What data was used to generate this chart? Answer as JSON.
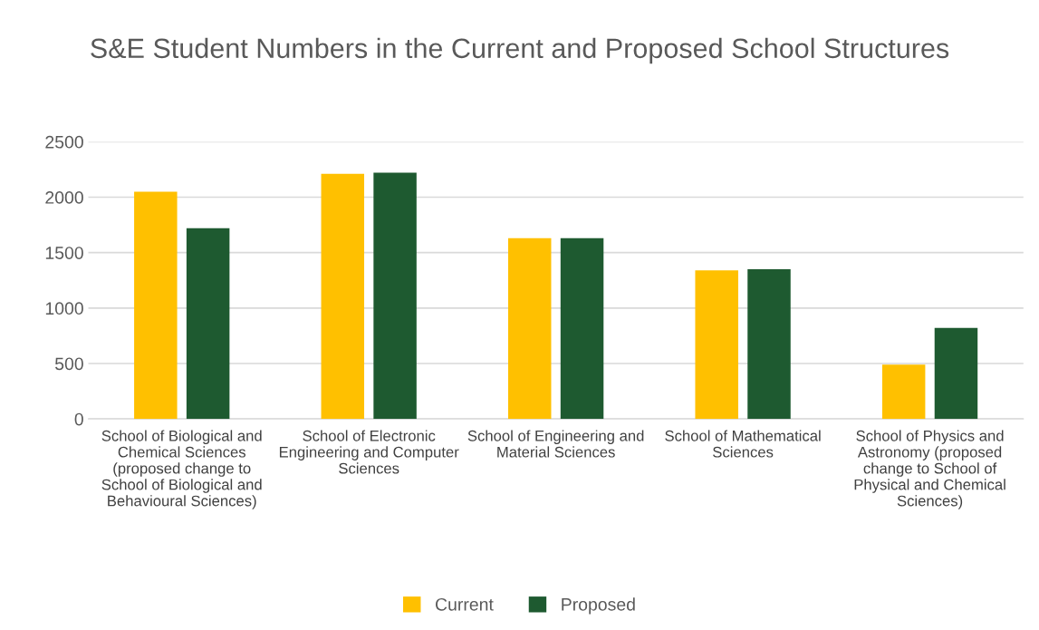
{
  "chart_data": {
    "type": "bar",
    "title": "S&E Student Numbers in the Current and Proposed School Structures",
    "categories": [
      "School of Biological and Chemical Sciences (proposed change to School of Biological and Behavioural Sciences)",
      "School of Electronic Engineering and Computer Sciences",
      "School of Engineering and Material Sciences",
      "School of Mathematical Sciences",
      "School of Physics and Astronomy (proposed change to School of Physical and Chemical Sciences)"
    ],
    "series": [
      {
        "name": "Current",
        "color": "#ffc000",
        "values": [
          2050,
          2210,
          1630,
          1340,
          490
        ]
      },
      {
        "name": "Proposed",
        "color": "#1e5a30",
        "values": [
          1720,
          2220,
          1630,
          1350,
          820
        ]
      }
    ],
    "ylim": [
      0,
      2500
    ],
    "yticks": [
      0,
      500,
      1000,
      1500,
      2000,
      2500
    ],
    "grid": "y",
    "legend": "bottom"
  }
}
